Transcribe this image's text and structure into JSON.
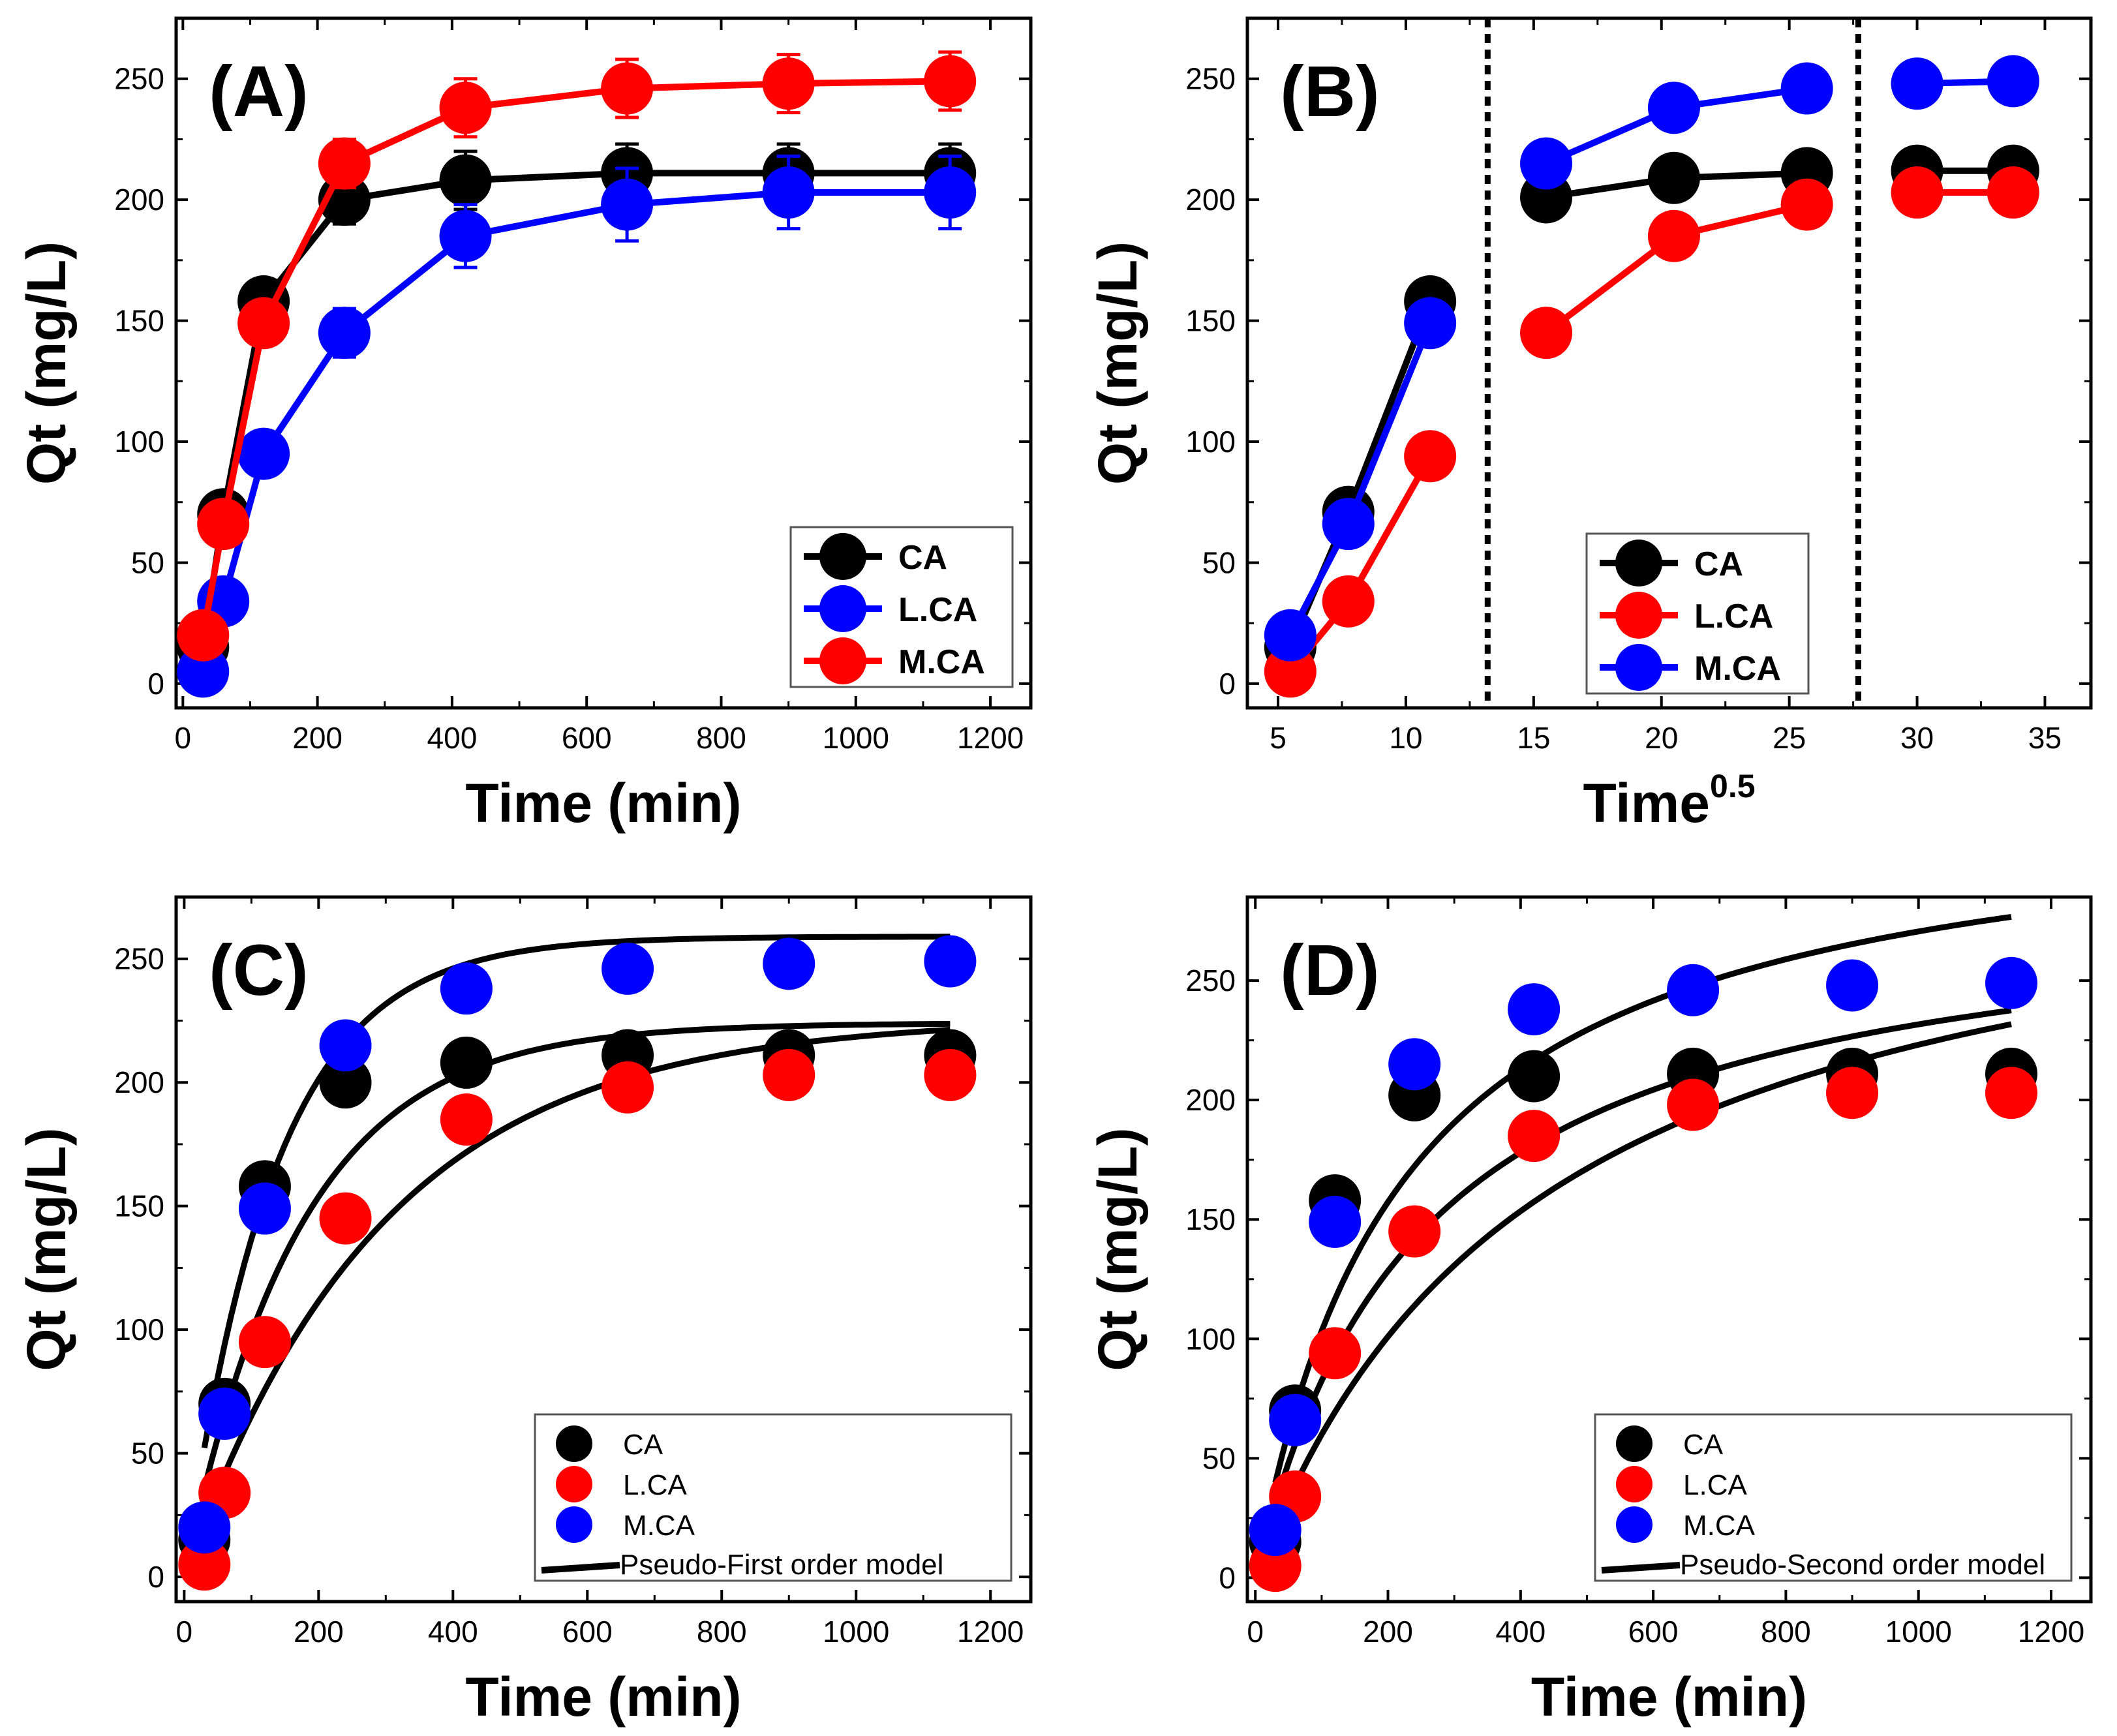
{
  "colors": {
    "CA": "#000000",
    "L.CA": "#0000ff",
    "M.CA": "#ff0000",
    "model": "#000000",
    "axis": "#000000"
  },
  "chart_data": [
    {
      "type": "line",
      "panel_label": "(A)",
      "xlabel": "Time (min)",
      "ylabel": "Qt (mg/L)",
      "xlim": [
        -10,
        1260
      ],
      "ylim": [
        -10,
        275
      ],
      "xticks": [
        0,
        200,
        400,
        600,
        800,
        1000,
        1200
      ],
      "yticks": [
        0,
        50,
        100,
        150,
        200,
        250
      ],
      "legend_position": "bottom-right",
      "series": [
        {
          "name": "CA",
          "color": "#000000",
          "x": [
            30,
            60,
            120,
            240,
            420,
            660,
            900,
            1140
          ],
          "y": [
            15,
            70,
            158,
            200,
            208,
            211,
            211,
            211
          ],
          "error": [
            8,
            8,
            8,
            10,
            12,
            12,
            12,
            12
          ]
        },
        {
          "name": "L.CA",
          "color": "#0000ff",
          "x": [
            30,
            60,
            120,
            240,
            420,
            660,
            900,
            1140
          ],
          "y": [
            5,
            34,
            95,
            145,
            185,
            198,
            203,
            203
          ],
          "error": [
            5,
            5,
            8,
            10,
            13,
            15,
            15,
            15
          ]
        },
        {
          "name": "M.CA",
          "color": "#ff0000",
          "x": [
            30,
            60,
            120,
            240,
            420,
            660,
            900,
            1140
          ],
          "y": [
            20,
            66,
            149,
            215,
            238,
            246,
            248,
            249
          ],
          "error": [
            8,
            8,
            8,
            10,
            12,
            12,
            12,
            12
          ]
        }
      ]
    },
    {
      "type": "line",
      "panel_label": "(B)",
      "xlabel": "Time",
      "xlabel_superscript": "0.5",
      "ylabel": "Qt (mg/L)",
      "xlim": [
        3.8,
        36.8
      ],
      "ylim": [
        -10,
        275
      ],
      "xticks": [
        5,
        10,
        15,
        20,
        25,
        30,
        35
      ],
      "yticks": [
        0,
        50,
        100,
        150,
        200,
        250
      ],
      "dividers": [
        13.2,
        27.7
      ],
      "legend_position": "bottom-center",
      "series": [
        {
          "name": "CA",
          "color": "#000000",
          "segments": [
            {
              "x": [
                5.48,
                7.75,
                10.95
              ],
              "y": [
                15,
                71,
                158
              ]
            },
            {
              "x": [
                15.49,
                20.49,
                25.69
              ],
              "y": [
                201,
                209,
                211
              ]
            },
            {
              "x": [
                30.0,
                33.76
              ],
              "y": [
                212,
                212
              ]
            }
          ]
        },
        {
          "name": "L.CA",
          "color": "#ff0000",
          "segments": [
            {
              "x": [
                5.48,
                7.75,
                10.95
              ],
              "y": [
                5,
                34,
                94
              ]
            },
            {
              "x": [
                15.49,
                20.49,
                25.69
              ],
              "y": [
                145,
                185,
                198
              ]
            },
            {
              "x": [
                30.0,
                33.76
              ],
              "y": [
                203,
                203
              ]
            }
          ]
        },
        {
          "name": "M.CA",
          "color": "#0000ff",
          "segments": [
            {
              "x": [
                5.48,
                7.75,
                10.95
              ],
              "y": [
                20,
                66,
                149
              ]
            },
            {
              "x": [
                15.49,
                20.49,
                25.69
              ],
              "y": [
                215,
                238,
                246
              ]
            },
            {
              "x": [
                30.0,
                33.76
              ],
              "y": [
                248,
                249
              ]
            }
          ]
        }
      ]
    },
    {
      "type": "scatter",
      "panel_label": "(C)",
      "xlabel": "Time (min)",
      "ylabel": "Qt (mg/L)",
      "xlim": [
        -12,
        1260
      ],
      "ylim": [
        -10,
        275
      ],
      "xticks": [
        0,
        200,
        400,
        600,
        800,
        1000,
        1200
      ],
      "yticks": [
        0,
        50,
        100,
        150,
        200,
        250
      ],
      "legend_position": "bottom-right",
      "series": [
        {
          "name": "CA",
          "color": "#000000",
          "x": [
            30,
            60,
            120,
            240,
            420,
            660,
            900,
            1140
          ],
          "y": [
            15,
            70,
            158,
            200,
            208,
            211,
            211,
            211
          ]
        },
        {
          "name": "L.CA",
          "color": "#ff0000",
          "x": [
            30,
            60,
            120,
            240,
            420,
            660,
            900,
            1140
          ],
          "y": [
            5,
            34,
            95,
            145,
            185,
            198,
            203,
            203
          ]
        },
        {
          "name": "M.CA",
          "color": "#0000ff",
          "x": [
            30,
            60,
            120,
            240,
            420,
            660,
            900,
            1140
          ],
          "y": [
            20,
            66,
            149,
            215,
            238,
            246,
            248,
            249
          ]
        }
      ],
      "model": {
        "name": "Pseudo-First order model",
        "kind": "pfo",
        "curves": [
          {
            "qe": 259,
            "k": 0.0075
          },
          {
            "qe": 224,
            "k": 0.0058
          },
          {
            "qe": 226,
            "k": 0.0034
          }
        ],
        "x_start": 30,
        "x_end": 1140
      }
    },
    {
      "type": "scatter",
      "panel_label": "(D)",
      "xlabel": "Time (min)",
      "ylabel": "Qt (mg/L)",
      "xlim": [
        -12,
        1260
      ],
      "ylim": [
        -10,
        285
      ],
      "xticks": [
        0,
        200,
        400,
        600,
        800,
        1000,
        1200
      ],
      "yticks": [
        0,
        50,
        100,
        150,
        200,
        250
      ],
      "legend_position": "bottom-right",
      "series": [
        {
          "name": "CA",
          "color": "#000000",
          "x": [
            30,
            60,
            120,
            240,
            420,
            660,
            900,
            1140
          ],
          "y": [
            15,
            70,
            158,
            202,
            210,
            211,
            211,
            211
          ]
        },
        {
          "name": "L.CA",
          "color": "#ff0000",
          "x": [
            30,
            60,
            120,
            240,
            420,
            660,
            900,
            1140
          ],
          "y": [
            5,
            34,
            94,
            145,
            185,
            198,
            203,
            203
          ]
        },
        {
          "name": "M.CA",
          "color": "#0000ff",
          "x": [
            30,
            60,
            120,
            240,
            420,
            660,
            900,
            1140
          ],
          "y": [
            20,
            66,
            149,
            215,
            238,
            246,
            248,
            249
          ]
        }
      ],
      "model": {
        "name": "Pseudo-Second order model",
        "kind": "pso",
        "curves": [
          {
            "qe": 330,
            "k": 1.38e-05
          },
          {
            "qe": 290,
            "k": 1.37e-05
          },
          {
            "qe": 320,
            "k": 7.2e-06
          }
        ],
        "x_start": 30,
        "x_end": 1140
      }
    }
  ]
}
